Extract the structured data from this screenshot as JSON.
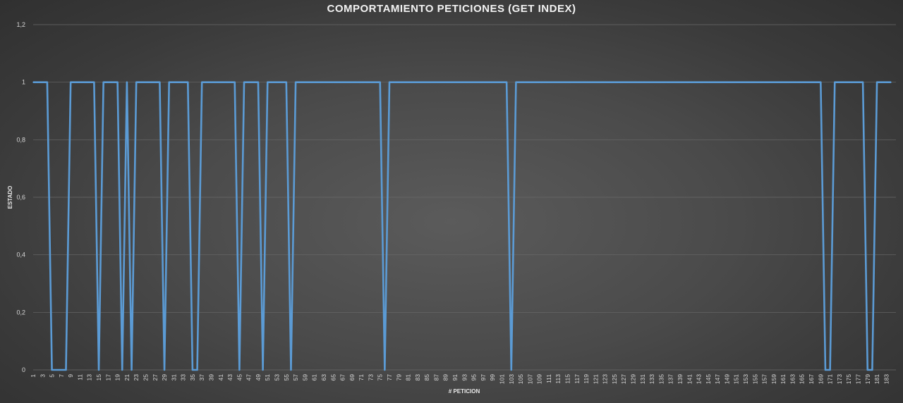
{
  "chart_data": {
    "type": "line",
    "title": "COMPORTAMIENTO PETICIONES (GET INDEX)",
    "xlabel": "# PETICION",
    "ylabel": "ESTADO",
    "ylim": [
      0,
      1.2
    ],
    "y_ticks": [
      "0",
      "0,2",
      "0,4",
      "0,6",
      "0,8",
      "1",
      "1,2"
    ],
    "x_range": [
      1,
      184
    ],
    "x_tick_step": 2,
    "grid": "horizontal",
    "series": [
      {
        "color": "#5b9bd5",
        "default_value": 1,
        "zero_at": [
          5,
          6,
          7,
          8,
          15,
          20,
          22,
          29,
          35,
          36,
          45,
          50,
          56,
          76,
          103,
          170,
          171,
          179,
          180
        ]
      }
    ]
  }
}
